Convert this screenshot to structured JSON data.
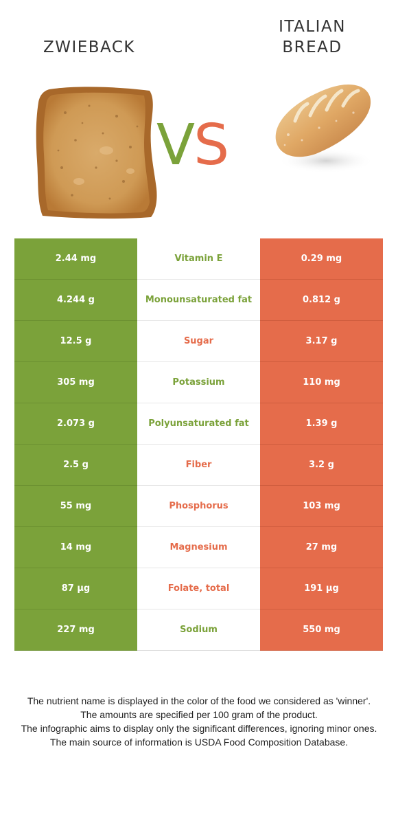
{
  "header": {
    "food_left": "ZWIEBACK",
    "food_right_line1": "ITALIAN",
    "food_right_line2": "BREAD",
    "vs_v": "V",
    "vs_s": "S"
  },
  "colors": {
    "left_food": "#7ba23a",
    "right_food": "#e56c4b"
  },
  "rows": [
    {
      "left": "2.44 mg",
      "nutrient": "Vitamin E",
      "right": "0.29 mg",
      "winner": "left"
    },
    {
      "left": "4.244 g",
      "nutrient": "Monounsaturated fat",
      "right": "0.812 g",
      "winner": "left"
    },
    {
      "left": "12.5 g",
      "nutrient": "Sugar",
      "right": "3.17 g",
      "winner": "right"
    },
    {
      "left": "305 mg",
      "nutrient": "Potassium",
      "right": "110 mg",
      "winner": "left"
    },
    {
      "left": "2.073 g",
      "nutrient": "Polyunsaturated fat",
      "right": "1.39 g",
      "winner": "left"
    },
    {
      "left": "2.5 g",
      "nutrient": "Fiber",
      "right": "3.2 g",
      "winner": "right"
    },
    {
      "left": "55 mg",
      "nutrient": "Phosphorus",
      "right": "103 mg",
      "winner": "right"
    },
    {
      "left": "14 mg",
      "nutrient": "Magnesium",
      "right": "27 mg",
      "winner": "right"
    },
    {
      "left": "87 µg",
      "nutrient": "Folate, total",
      "right": "191 µg",
      "winner": "right"
    },
    {
      "left": "227 mg",
      "nutrient": "Sodium",
      "right": "550 mg",
      "winner": "left"
    }
  ],
  "footnote": [
    "The nutrient name is displayed in the color of the food we considered as 'winner'.",
    "The amounts are specified per 100 gram of the product.",
    "The infographic aims to display only the significant differences, ignoring minor ones.",
    "The main source of information is USDA Food Composition Database."
  ]
}
